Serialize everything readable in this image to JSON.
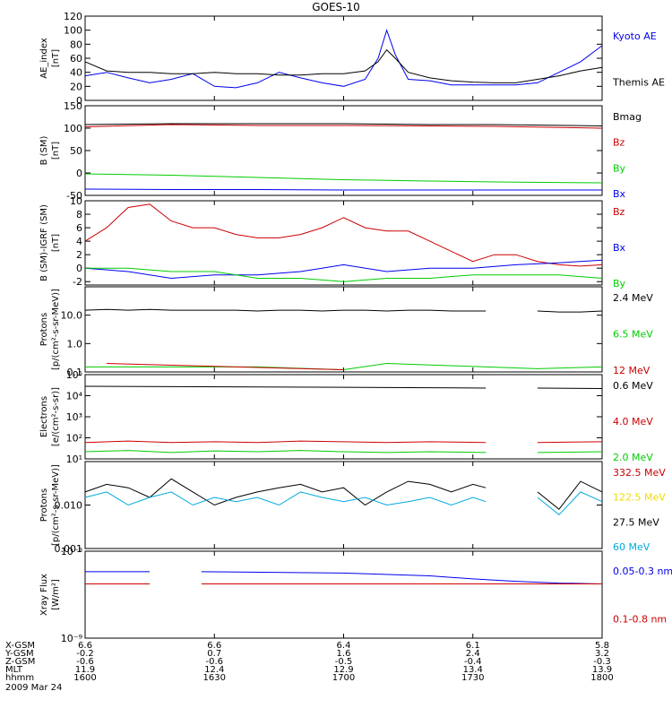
{
  "title": "GOES-10",
  "colors": {
    "black": "#000000",
    "blue": "#0000ee",
    "green": "#00cc00",
    "red": "#cc0000",
    "yellow": "#eedd00",
    "cyan": "#00aadd"
  },
  "chart_data": [
    {
      "type": "line",
      "ylabel": [
        "AE_index",
        "[nT]"
      ],
      "yscale": "linear",
      "ylim": [
        0,
        120
      ],
      "yticks": [
        "0",
        "20",
        "40",
        "60",
        "80",
        "100",
        "120"
      ],
      "series": [
        {
          "name": "Kyoto AE",
          "color": "#0000ee",
          "x": [
            1600,
            1605,
            1610,
            1615,
            1620,
            1625,
            1630,
            1635,
            1640,
            1645,
            1650,
            1655,
            1700,
            1705,
            1708,
            1710,
            1712,
            1715,
            1720,
            1725,
            1730,
            1735,
            1740,
            1745,
            1750,
            1755,
            1800
          ],
          "y": [
            35,
            40,
            32,
            25,
            30,
            38,
            20,
            18,
            25,
            40,
            32,
            25,
            20,
            30,
            60,
            100,
            65,
            30,
            28,
            22,
            22,
            22,
            22,
            25,
            40,
            55,
            78
          ]
        },
        {
          "name": "Themis AE",
          "color": "#000000",
          "x": [
            1600,
            1605,
            1610,
            1615,
            1620,
            1625,
            1630,
            1635,
            1640,
            1645,
            1650,
            1655,
            1700,
            1705,
            1708,
            1710,
            1712,
            1715,
            1720,
            1725,
            1730,
            1735,
            1740,
            1745,
            1750,
            1755,
            1800
          ],
          "y": [
            55,
            42,
            40,
            40,
            38,
            38,
            40,
            38,
            38,
            36,
            36,
            38,
            38,
            42,
            55,
            72,
            60,
            40,
            32,
            28,
            26,
            25,
            25,
            30,
            35,
            42,
            47
          ]
        }
      ]
    },
    {
      "type": "line",
      "ylabel": [
        "B (SM)",
        "[nT]"
      ],
      "yscale": "linear",
      "ylim": [
        -50,
        150
      ],
      "yticks": [
        "-50",
        "0",
        "50",
        "100",
        "150"
      ],
      "series": [
        {
          "name": "Bmag",
          "color": "#000000",
          "x": [
            1600,
            1620,
            1640,
            1700,
            1720,
            1735,
            1800
          ],
          "y": [
            108,
            110,
            110,
            110,
            108,
            108,
            105
          ]
        },
        {
          "name": "Bz",
          "color": "#cc0000",
          "x": [
            1600,
            1620,
            1640,
            1700,
            1720,
            1735,
            1800
          ],
          "y": [
            103,
            108,
            106,
            106,
            105,
            104,
            100
          ]
        },
        {
          "name": "By",
          "color": "#00cc00",
          "x": [
            1600,
            1620,
            1640,
            1700,
            1720,
            1735,
            1800
          ],
          "y": [
            -2,
            -5,
            -10,
            -15,
            -18,
            -20,
            -22
          ]
        },
        {
          "name": "Bx",
          "color": "#0000ee",
          "x": [
            1600,
            1620,
            1640,
            1700,
            1720,
            1735,
            1800
          ],
          "y": [
            -36,
            -37,
            -37,
            -38,
            -38,
            -38,
            -38
          ]
        }
      ]
    },
    {
      "type": "line",
      "ylabel": [
        "B (SM)-IGRF (SM)",
        "[nT]"
      ],
      "yscale": "linear",
      "ylim": [
        -2.5,
        10
      ],
      "yticks": [
        "-2",
        "0",
        "2",
        "4",
        "6",
        "8",
        "10"
      ],
      "series": [
        {
          "name": "Bz",
          "color": "#cc0000",
          "x": [
            1600,
            1605,
            1610,
            1615,
            1620,
            1625,
            1630,
            1635,
            1640,
            1645,
            1650,
            1655,
            1700,
            1705,
            1710,
            1715,
            1720,
            1725,
            1730,
            1735,
            1740,
            1745,
            1750,
            1755,
            1800
          ],
          "y": [
            4,
            6,
            9,
            9.5,
            7,
            6,
            6,
            5,
            4.5,
            4.5,
            5,
            6,
            7.5,
            6,
            5.5,
            5.5,
            4,
            2.5,
            1,
            2,
            2,
            1,
            0.5,
            0.3,
            0.5
          ]
        },
        {
          "name": "Bx",
          "color": "#0000ee",
          "x": [
            1600,
            1610,
            1620,
            1630,
            1640,
            1650,
            1655,
            1700,
            1710,
            1720,
            1730,
            1740,
            1750,
            1800
          ],
          "y": [
            0,
            -0.5,
            -1.5,
            -1,
            -1,
            -0.5,
            0,
            0.5,
            -0.5,
            0,
            0,
            0.5,
            0.8,
            1.2
          ]
        },
        {
          "name": "By",
          "color": "#00cc00",
          "x": [
            1600,
            1610,
            1620,
            1630,
            1640,
            1650,
            1700,
            1710,
            1720,
            1730,
            1740,
            1750,
            1800
          ],
          "y": [
            0,
            0,
            -0.5,
            -0.5,
            -1.5,
            -1.5,
            -2,
            -1.5,
            -1.5,
            -1,
            -1,
            -1,
            -1.5
          ]
        }
      ]
    },
    {
      "type": "line",
      "ylabel": [
        "Protons",
        "[p/(cm²-s-sr-MeV)]"
      ],
      "yscale": "log",
      "ylim": [
        0.1,
        100
      ],
      "yticks": [
        "0.1",
        "1.0",
        "10.0"
      ],
      "series": [
        {
          "name": "2.4 MeV",
          "color": "#000000",
          "x": [
            1600,
            1605,
            1610,
            1615,
            1620,
            1625,
            1630,
            1635,
            1640,
            1645,
            1650,
            1655,
            1700,
            1705,
            1710,
            1715,
            1720,
            1725,
            1730,
            1733,
            null,
            1745,
            1750,
            1755,
            1800
          ],
          "y": [
            15,
            16,
            15,
            16,
            15,
            15,
            15,
            15,
            14,
            15,
            15,
            14,
            15,
            15,
            14,
            15,
            15,
            14,
            14,
            14,
            null,
            14,
            13,
            13,
            14
          ]
        },
        {
          "name": "6.5 MeV",
          "color": "#00cc00",
          "x": [
            1600,
            1620,
            1640,
            1700,
            1710,
            1745,
            1800
          ],
          "y": [
            0.15,
            0.15,
            0.15,
            0.12,
            0.2,
            0.13,
            0.15
          ]
        },
        {
          "name": "12 MeV",
          "color": "#cc0000",
          "x": [
            1605,
            1700
          ],
          "y": [
            0.2,
            0.12
          ]
        }
      ]
    },
    {
      "type": "line",
      "ylabel": [
        "Electrons",
        "[e/(cm²-s-sr)]"
      ],
      "yscale": "log",
      "ylim": [
        10,
        100000
      ],
      "yticks": [
        "10¹",
        "10²",
        "10³",
        "10⁴",
        "10⁵"
      ],
      "series": [
        {
          "name": "0.6 MeV",
          "color": "#000000",
          "x": [
            1600,
            1620,
            1640,
            1700,
            1720,
            1733,
            null,
            1745,
            1800
          ],
          "y": [
            28000,
            27000,
            26000,
            25000,
            24000,
            23000,
            null,
            23000,
            22000
          ]
        },
        {
          "name": "4.0 MeV",
          "color": "#cc0000",
          "x": [
            1600,
            1610,
            1620,
            1630,
            1640,
            1650,
            1700,
            1710,
            1720,
            1733,
            null,
            1745,
            1800
          ],
          "y": [
            60,
            70,
            60,
            65,
            60,
            70,
            65,
            60,
            65,
            60,
            null,
            60,
            65
          ]
        },
        {
          "name": "2.0 MeV",
          "color": "#00cc00",
          "x": [
            1600,
            1610,
            1620,
            1630,
            1640,
            1650,
            1700,
            1710,
            1720,
            1733,
            null,
            1745,
            1800
          ],
          "y": [
            22,
            25,
            20,
            24,
            22,
            25,
            22,
            20,
            22,
            20,
            null,
            20,
            22
          ]
        }
      ]
    },
    {
      "type": "line",
      "ylabel": [
        "Protons",
        "[p/(cm²-s-sr-MeV)]"
      ],
      "yscale": "log",
      "ylim": [
        0.001,
        0.1
      ],
      "yticks": [
        "0.001",
        "0.010"
      ],
      "series": [
        {
          "name": "332.5 MeV",
          "color": "#cc0000",
          "x": [],
          "y": []
        },
        {
          "name": "122.5 MeV",
          "color": "#eedd00",
          "x": [],
          "y": []
        },
        {
          "name": "27.5 MeV",
          "color": "#000000",
          "x": [
            1600,
            1605,
            1610,
            1615,
            1620,
            1625,
            1630,
            1635,
            1640,
            1645,
            1650,
            1655,
            1700,
            1705,
            1710,
            1715,
            1720,
            1725,
            1730,
            1733,
            null,
            1745,
            1750,
            1755,
            1800
          ],
          "y": [
            0.02,
            0.03,
            0.025,
            0.015,
            0.04,
            0.02,
            0.01,
            0.015,
            0.02,
            0.025,
            0.03,
            0.02,
            0.025,
            0.01,
            0.02,
            0.035,
            0.03,
            0.02,
            0.03,
            0.025,
            null,
            0.02,
            0.008,
            0.035,
            0.02
          ]
        },
        {
          "name": "60 MeV",
          "color": "#00aadd",
          "x": [
            1600,
            1605,
            1610,
            1615,
            1620,
            1625,
            1630,
            1635,
            1640,
            1645,
            1650,
            1655,
            1700,
            1705,
            1710,
            1715,
            1720,
            1725,
            1730,
            1733,
            null,
            1745,
            1750,
            1755,
            1800
          ],
          "y": [
            0.015,
            0.02,
            0.01,
            0.015,
            0.02,
            0.01,
            0.015,
            0.012,
            0.015,
            0.01,
            0.02,
            0.015,
            0.012,
            0.015,
            0.01,
            0.012,
            0.015,
            0.01,
            0.015,
            0.012,
            null,
            0.015,
            0.006,
            0.02,
            0.012
          ]
        }
      ]
    },
    {
      "type": "line",
      "ylabel": [
        "Xray Flux",
        "[W/m²]"
      ],
      "yscale": "log",
      "ylim": [
        1e-09,
        1e-08
      ],
      "yticks": [
        "10⁻⁹",
        "10⁻⁸"
      ],
      "series": [
        {
          "name": "0.05-0.3 nm",
          "color": "#0000ee",
          "x": [
            1600,
            1615,
            null,
            1627,
            1700,
            1720,
            1730,
            1740,
            1750,
            1800
          ],
          "y": [
            5.8e-09,
            5.8e-09,
            null,
            5.8e-09,
            5.6e-09,
            5.2e-09,
            4.8e-09,
            4.5e-09,
            4.3e-09,
            4.2e-09
          ]
        },
        {
          "name": "0.1-0.8 nm",
          "color": "#cc0000",
          "x": [
            1600,
            1615,
            null,
            1627,
            1800
          ],
          "y": [
            4.2e-09,
            4.2e-09,
            null,
            4.2e-09,
            4.2e-09
          ]
        }
      ]
    }
  ],
  "xaxis": {
    "row_labels": [
      "X-GSM",
      "Y-GSM",
      "Z-GSM",
      "MLT",
      "hhmm",
      "2009 Mar 24"
    ],
    "columns": [
      {
        "hhmm": "1600",
        "values": [
          "6.6",
          "-0.2",
          "-0.6",
          "11.9",
          "1600"
        ]
      },
      {
        "hhmm": "1630",
        "values": [
          "6.6",
          "0.7",
          "-0.6",
          "12.4",
          "1630"
        ]
      },
      {
        "hhmm": "1700",
        "values": [
          "6.4",
          "1.6",
          "-0.5",
          "12.9",
          "1700"
        ]
      },
      {
        "hhmm": "1730",
        "values": [
          "6.1",
          "2.4",
          "-0.4",
          "13.4",
          "1730"
        ]
      },
      {
        "hhmm": "1800",
        "values": [
          "5.8",
          "3.2",
          "-0.3",
          "13.9",
          "1800"
        ]
      }
    ]
  }
}
